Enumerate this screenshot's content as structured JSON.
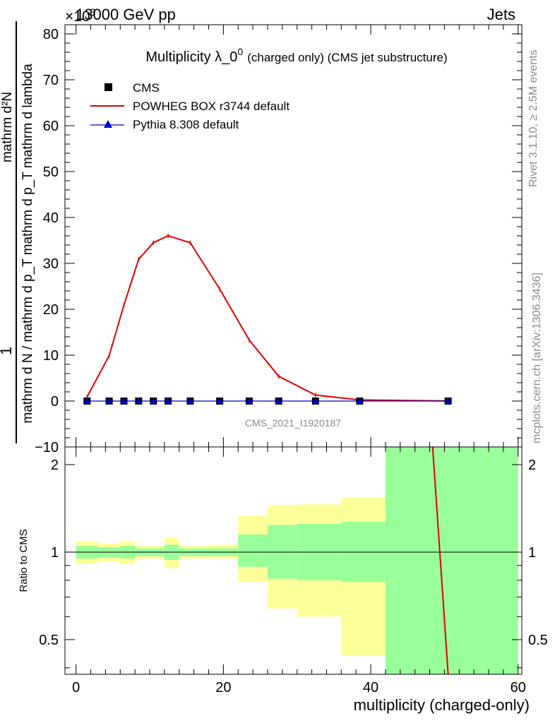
{
  "header": {
    "left": "13000 GeV pp",
    "right": "Jets",
    "exponent": "×10",
    "exponent_power": "3"
  },
  "side_text": {
    "rivet": "Rivet 3.1.10, ≥ 2.5M events",
    "mcplots": "mcplots.cern.ch [arXiv:1306.3436]"
  },
  "main_panel": {
    "title_main": "Multiplicity λ_0",
    "title_sup": "0",
    "title_suffix": "(charged only) (CMS jet substructure)",
    "ylabel_top": "1",
    "ylabel_bottom": "mathrm d N / mathrm d p_T mathrm d p_T mathrm d lambda",
    "ylabel_num": "mathrm d²N",
    "watermark": "CMS_2021_I1920187",
    "legend": [
      {
        "label": "CMS",
        "style": "square",
        "color": "#000000"
      },
      {
        "label": "POWHEG BOX r3744 default",
        "style": "line",
        "color": "#e00000"
      },
      {
        "label": "Pythia 8.308 default",
        "style": "triangle",
        "color": "#0000cc"
      }
    ]
  },
  "ratio_panel": {
    "ylabel": "Ratio to CMS",
    "xlabel": "multiplicity (charged-only)"
  },
  "chart_data": {
    "type": "line",
    "x_range": [
      -1.5,
      60.5
    ],
    "y_range_main": [
      -10,
      82
    ],
    "y_range_ratio": [
      0.38,
      2.3
    ],
    "y_scale_factor": "×10^3",
    "x_ticks": [
      0,
      20,
      40,
      60
    ],
    "y_ticks_main": [
      -10,
      0,
      10,
      20,
      30,
      40,
      50,
      60,
      70,
      80
    ],
    "y_ticks_ratio": [
      0.5,
      1,
      2
    ],
    "series": [
      {
        "name": "CMS",
        "x": [
          1.5,
          4.5,
          6.5,
          8.5,
          10.5,
          12.5,
          15.5,
          19.5,
          23.5,
          27.5,
          32.5,
          38.5,
          50.5
        ],
        "y": [
          0,
          0,
          0,
          0,
          0,
          0,
          0,
          0,
          0,
          0,
          0,
          0,
          0
        ]
      },
      {
        "name": "POWHEG BOX r3744 default",
        "x": [
          1.5,
          4.5,
          6.5,
          8.5,
          10.5,
          12.5,
          15.5,
          19.5,
          23.5,
          27.5,
          32.5,
          38.5,
          50.5
        ],
        "y": [
          0.9,
          9.9,
          20.9,
          30.9,
          34.5,
          36.0,
          34.5,
          24.4,
          13.3,
          5.4,
          1.3,
          0.25,
          0.02
        ]
      },
      {
        "name": "Pythia 8.308 default",
        "x": [
          1.5,
          4.5,
          6.5,
          8.5,
          10.5,
          12.5,
          15.5,
          19.5,
          23.5,
          27.5,
          32.5,
          38.5,
          50.5
        ],
        "y": [
          0,
          0,
          0,
          0,
          0,
          0,
          0,
          0,
          0,
          0,
          0,
          0,
          0
        ]
      }
    ],
    "ratio_bands": [
      {
        "x": [
          0,
          3
        ],
        "green": [
          0.95,
          1.05
        ],
        "yellow": [
          0.91,
          1.09
        ]
      },
      {
        "x": [
          3,
          4
        ],
        "green": [
          0.96,
          1.04
        ],
        "yellow": [
          0.93,
          1.07
        ]
      },
      {
        "x": [
          4,
          6
        ],
        "green": [
          0.96,
          1.04
        ],
        "yellow": [
          0.93,
          1.07
        ]
      },
      {
        "x": [
          6,
          8
        ],
        "green": [
          0.95,
          1.05
        ],
        "yellow": [
          0.91,
          1.09
        ]
      },
      {
        "x": [
          8,
          10
        ],
        "green": [
          0.97,
          1.03
        ],
        "yellow": [
          0.95,
          1.05
        ]
      },
      {
        "x": [
          10,
          12
        ],
        "green": [
          0.97,
          1.03
        ],
        "yellow": [
          0.95,
          1.05
        ]
      },
      {
        "x": [
          12,
          14
        ],
        "green": [
          0.94,
          1.06
        ],
        "yellow": [
          0.88,
          1.12
        ]
      },
      {
        "x": [
          14,
          18
        ],
        "green": [
          0.97,
          1.03
        ],
        "yellow": [
          0.95,
          1.05
        ]
      },
      {
        "x": [
          18,
          22
        ],
        "green": [
          0.97,
          1.03
        ],
        "yellow": [
          0.95,
          1.06
        ]
      },
      {
        "x": [
          22,
          26
        ],
        "green": [
          0.89,
          1.15
        ],
        "yellow": [
          0.79,
          1.33
        ]
      },
      {
        "x": [
          26,
          30
        ],
        "green": [
          0.81,
          1.24
        ],
        "yellow": [
          0.64,
          1.45
        ]
      },
      {
        "x": [
          30,
          36
        ],
        "green": [
          0.8,
          1.25
        ],
        "yellow": [
          0.6,
          1.46
        ]
      },
      {
        "x": [
          36,
          42
        ],
        "green": [
          0.79,
          1.27
        ],
        "yellow": [
          0.44,
          1.54
        ]
      },
      {
        "x": [
          42,
          60
        ],
        "green": [
          0.38,
          2.3
        ],
        "yellow": [
          0.38,
          2.3
        ]
      }
    ],
    "ratio_powheg_line": {
      "x": [
        48.4,
        50.5
      ],
      "y": [
        2.3,
        0.38
      ]
    },
    "colors": {
      "green": "#99ff99",
      "yellow": "#ffff99",
      "powheg": "#e00000",
      "pythia": "#0000cc"
    }
  }
}
